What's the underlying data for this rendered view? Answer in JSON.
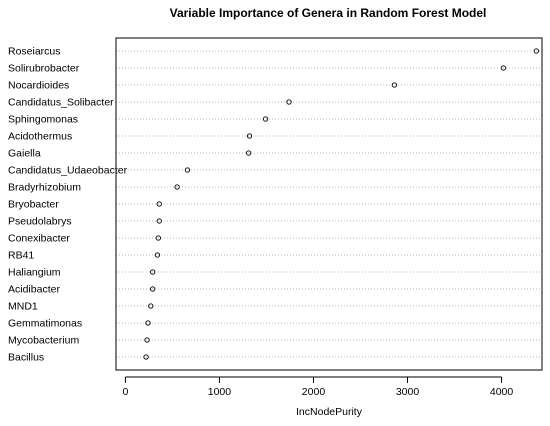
{
  "chart_data": {
    "type": "scatter",
    "title": "Variable Importance of Genera in Random Forest Model",
    "xlabel": "IncNodePurity",
    "ylabel": "",
    "xlim": [
      -100,
      4430
    ],
    "x_ticks": [
      0,
      1000,
      2000,
      3000,
      4000
    ],
    "x_tick_labels": [
      "0",
      "1000",
      "2000",
      "3000",
      "4000"
    ],
    "grid": "dotted horizontal guide lines per variable",
    "categories": [
      "Roseiarcus",
      "Solirubrobacter",
      "Nocardioides",
      "Candidatus_Solibacter",
      "Sphingomonas",
      "Acidothermus",
      "Gaiella",
      "Candidatus_Udaeobacter",
      "Bradyrhizobium",
      "Bryobacter",
      "Pseudolabrys",
      "Conexibacter",
      "RB41",
      "Haliangium",
      "Acidibacter",
      "MND1",
      "Gemmatimonas",
      "Mycobacterium",
      "Bacillus"
    ],
    "values": [
      4370,
      4020,
      2860,
      1740,
      1490,
      1320,
      1310,
      660,
      550,
      360,
      360,
      350,
      340,
      290,
      290,
      270,
      240,
      230,
      220
    ]
  },
  "colors": {
    "point_stroke": "#000000",
    "guide_line": "#b3b3b3",
    "frame": "#000000"
  }
}
